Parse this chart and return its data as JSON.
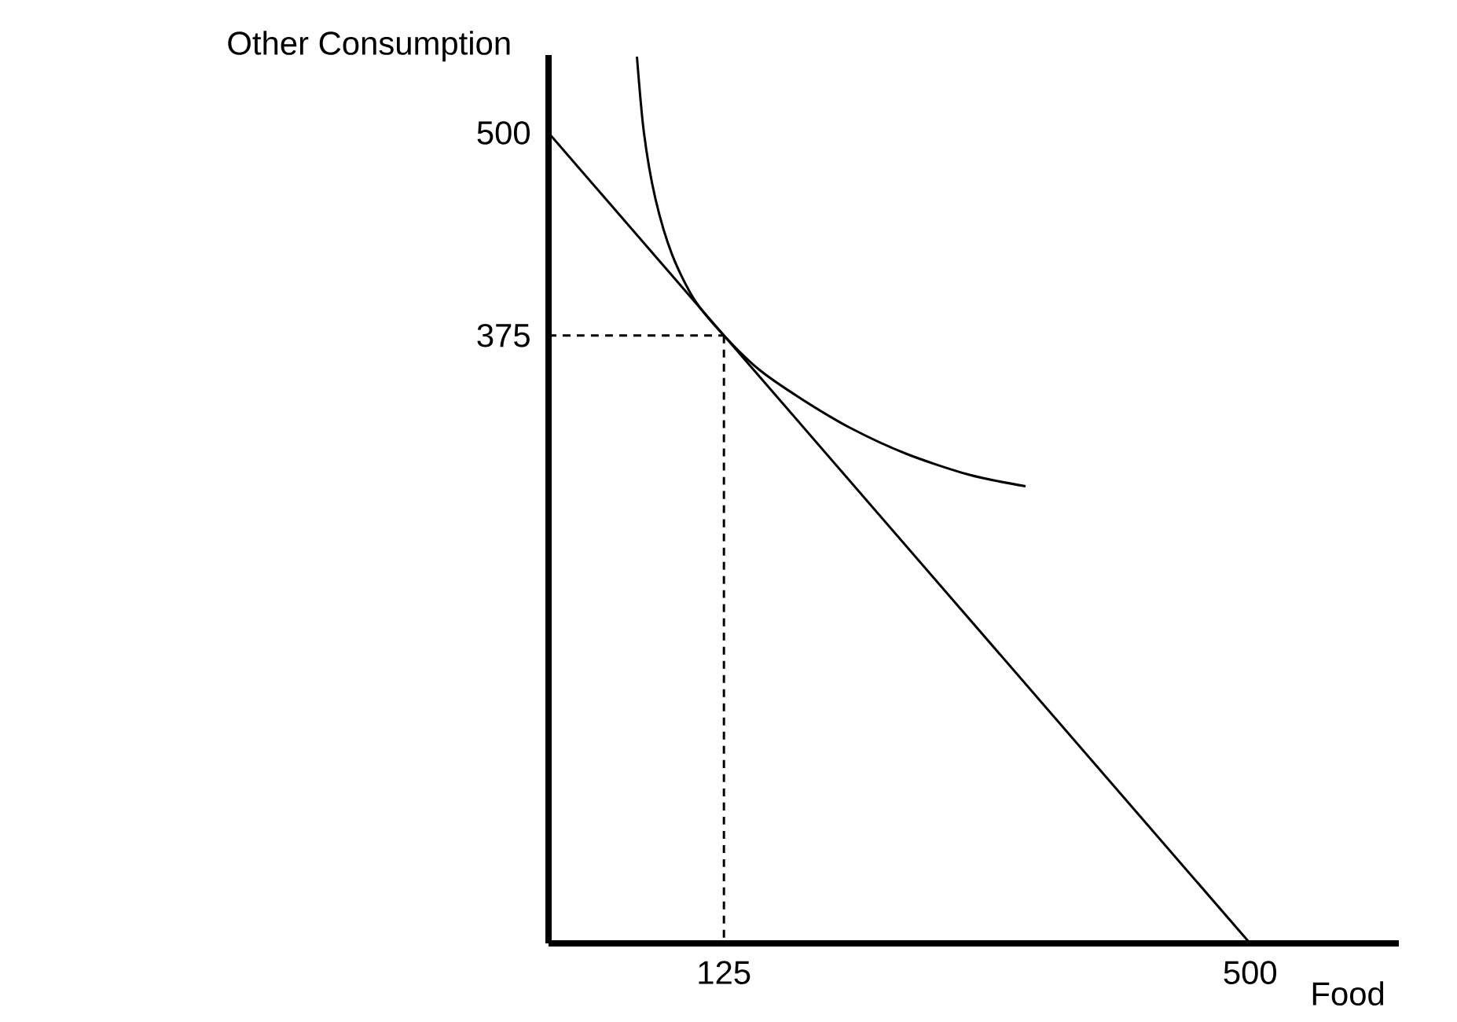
{
  "chart_data": {
    "type": "line",
    "xlabel": "Food",
    "ylabel": "Other Consumption",
    "xlim": [
      0,
      606
    ],
    "ylim": [
      0,
      548
    ],
    "xticks": [
      125,
      500
    ],
    "yticks": [
      375,
      500
    ],
    "marker": "none",
    "series": [
      {
        "x": [
          0,
          500
        ],
        "values": [
          500,
          0
        ],
        "color": "#000000"
      },
      {
        "x": [
          63,
          68,
          76,
          88,
          104,
          125,
          150,
          180,
          215,
          255,
          300,
          340
        ],
        "values": [
          547,
          500,
          460,
          425,
          397,
          375,
          354,
          336,
          318,
          302,
          289,
          282
        ],
        "color": "#000000"
      },
      {
        "x": [
          0,
          125
        ],
        "values": [
          375,
          375
        ],
        "color": "#000000",
        "line_style": "dashed"
      },
      {
        "x": [
          125,
          125
        ],
        "values": [
          375,
          0
        ],
        "color": "#000000",
        "line_style": "dashed"
      }
    ]
  }
}
